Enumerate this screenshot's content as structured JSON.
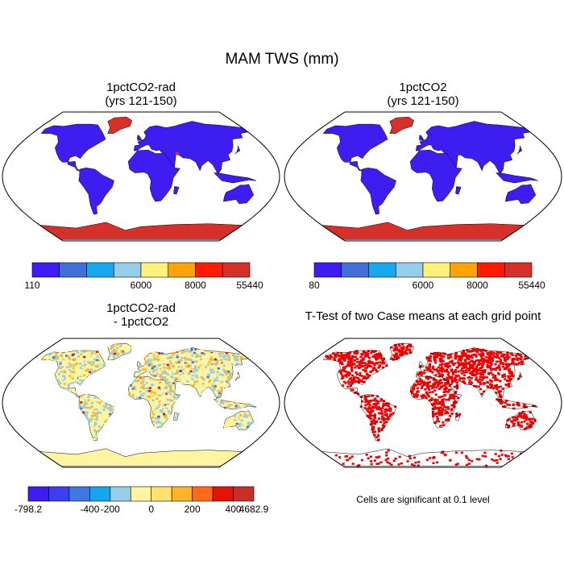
{
  "title": "MAM TWS (mm)",
  "panels": [
    {
      "id": "rad",
      "title_line1": "1pctCO2-rad",
      "title_line2": "(yrs 121-150)",
      "colorbar": {
        "colors": [
          "#3d1df0",
          "#4370d8",
          "#18a8f0",
          "#96cdea",
          "#fff27a",
          "#ffa30a",
          "#ff1a00",
          "#d6302b"
        ],
        "labels": [
          "110",
          "6000",
          "8000",
          "55440"
        ]
      },
      "fill": {
        "land": "#3d1df0",
        "ice": "#d6302b",
        "hot": "#d6302b"
      }
    },
    {
      "id": "ctl",
      "title_line1": "1pctCO2",
      "title_line2": "(yrs 121-150)",
      "colorbar": {
        "colors": [
          "#3d1df0",
          "#4370d8",
          "#18a8f0",
          "#96cdea",
          "#fff27a",
          "#ffa30a",
          "#ff1a00",
          "#d6302b"
        ],
        "labels": [
          "80",
          "6000",
          "8000",
          "55440"
        ]
      },
      "fill": {
        "land": "#3d1df0",
        "ice": "#d6302b",
        "hot": "#d6302b"
      }
    },
    {
      "id": "diff",
      "title_line1": "1pctCO2-rad",
      "title_line2": "- 1pctCO2",
      "colorbar": {
        "colors": [
          "#3d1df0",
          "#3a3ff0",
          "#3f78e0",
          "#16a6f0",
          "#96cdea",
          "#fff5a0",
          "#ffe270",
          "#ffb32a",
          "#ff6a1a",
          "#e2140a",
          "#c82e2a"
        ],
        "labels": [
          "-798.2",
          "-400",
          "-200",
          "0",
          "200",
          "400",
          "4682.9"
        ]
      },
      "fill": {
        "land": "#fff5a0",
        "wet": "#96cdea",
        "dry": "#ffb32a",
        "ice": "#fff5a0"
      }
    },
    {
      "id": "ttest",
      "title_line1": "T-Test of two Case means at each grid point",
      "note": "Cells are significant at 0.1 level",
      "fill": {
        "sig": "#ee0000"
      }
    }
  ]
}
